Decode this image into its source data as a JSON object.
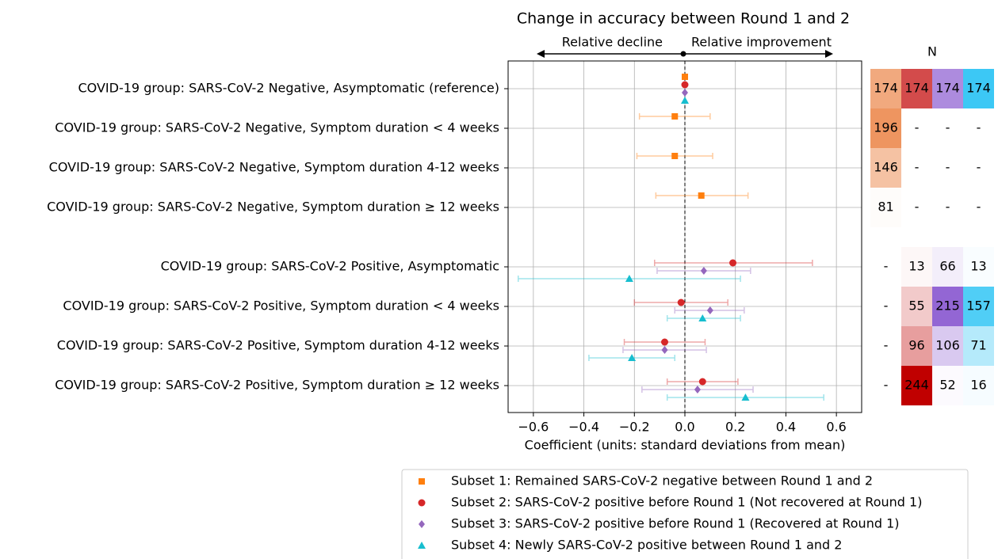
{
  "chart_data": {
    "type": "forest",
    "title": "Change in accuracy between Round 1 and 2",
    "annotation_left": "Relative decline",
    "annotation_right": "Relative improvement",
    "x_label": "Coefficient (units: standard deviations from mean)",
    "categories": [
      "COVID-19 group: SARS-CoV-2 Negative, Asymptomatic (reference)",
      "COVID-19 group: SARS-CoV-2 Negative, Symptom duration < 4 weeks",
      "COVID-19 group: SARS-CoV-2 Negative, Symptom duration 4-12 weeks",
      "COVID-19 group: SARS-CoV-2 Negative, Symptom duration ≥ 12 weeks",
      "COVID-19 group: SARS-CoV-2 Positive, Asymptomatic",
      "COVID-19 group: SARS-CoV-2 Positive, Symptom duration < 4 weeks",
      "COVID-19 group: SARS-CoV-2 Positive, Symptom duration 4-12 weeks",
      "COVID-19 group: SARS-CoV-2 Positive, Symptom duration ≥ 12 weeks"
    ],
    "xlim": [
      -0.7,
      0.7
    ],
    "xticks": [
      {
        "value": -0.6,
        "label": "−0.6"
      },
      {
        "value": -0.4,
        "label": "−0.4"
      },
      {
        "value": -0.2,
        "label": "−0.2"
      },
      {
        "value": 0,
        "label": "0.0"
      },
      0.2,
      0.4,
      0.6
    ],
    "grid": true,
    "series": [
      {
        "name": "Subset 1: Remained SARS-CoV-2 negative between Round 1 and 2",
        "color": "#ff7f0e",
        "marker": "square",
        "values": [
          0,
          -0.04,
          -0.04,
          0.065,
          null,
          null,
          null,
          null
        ],
        "lower": [
          null,
          -0.18,
          -0.19,
          -0.115,
          null,
          null,
          null,
          null
        ],
        "upper": [
          null,
          0.1,
          0.11,
          0.25,
          null,
          null,
          null,
          null
        ]
      },
      {
        "name": "Subset 2: SARS-CoV-2 positive before Round 1 (Not recovered at Round 1)",
        "color": "#d62728",
        "marker": "circle",
        "values": [
          0,
          null,
          null,
          null,
          0.19,
          -0.015,
          -0.08,
          0.07
        ],
        "lower": [
          null,
          null,
          null,
          null,
          -0.12,
          -0.2,
          -0.24,
          -0.07
        ],
        "upper": [
          null,
          null,
          null,
          null,
          0.505,
          0.17,
          0.08,
          0.21
        ]
      },
      {
        "name": "Subset 3: SARS-CoV-2 positive before Round 1 (Recovered at Round 1)",
        "color": "#9467bd",
        "marker": "diamond",
        "values": [
          0,
          null,
          null,
          null,
          0.075,
          0.1,
          -0.08,
          0.05
        ],
        "lower": [
          null,
          null,
          null,
          null,
          -0.11,
          -0.04,
          -0.245,
          -0.17
        ],
        "upper": [
          null,
          null,
          null,
          null,
          0.26,
          0.235,
          0.085,
          0.27
        ]
      },
      {
        "name": "Subset 4: Newly SARS-CoV-2 positive between Round 1 and 2",
        "color": "#17becf",
        "marker": "triangle",
        "values": [
          0,
          null,
          null,
          null,
          -0.22,
          0.07,
          -0.21,
          0.24
        ],
        "lower": [
          null,
          null,
          null,
          null,
          -0.66,
          -0.07,
          -0.38,
          -0.07
        ],
        "upper": [
          null,
          null,
          null,
          null,
          0.22,
          0.22,
          -0.04,
          0.55
        ]
      }
    ],
    "n_title": "N",
    "n_colors": [
      "#ee9560",
      "#c00000",
      "#9366d4",
      "#3cc8f5"
    ],
    "n_values": [
      [
        174,
        174,
        174,
        174
      ],
      [
        196,
        "-",
        "-",
        "-"
      ],
      [
        146,
        "-",
        "-",
        "-"
      ],
      [
        81,
        "-",
        "-",
        "-"
      ],
      [
        "-",
        13,
        66,
        13
      ],
      [
        "-",
        55,
        215,
        157
      ],
      [
        "-",
        96,
        106,
        71
      ],
      [
        "-",
        244,
        52,
        16
      ]
    ]
  }
}
